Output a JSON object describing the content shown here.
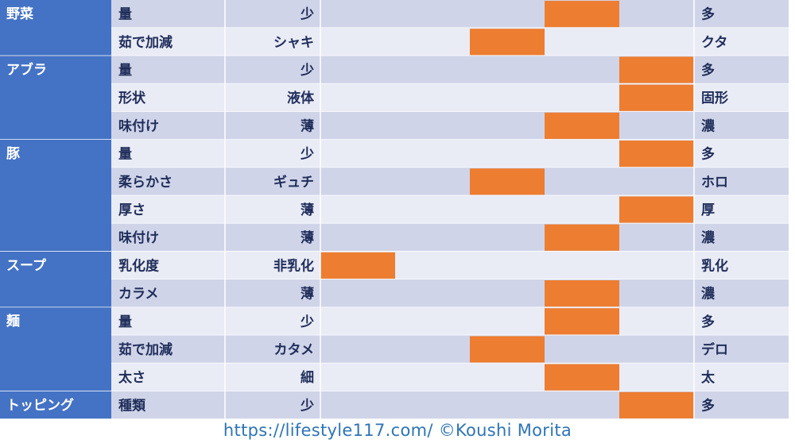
{
  "colors": {
    "category_bg": "#4472c4",
    "row_dark": "#cfd4e8",
    "row_light": "#e9ebf5",
    "marker": "#ed7d31",
    "text": "#1f2d5a",
    "grid": "#ffffff"
  },
  "chart_data": {
    "type": "table",
    "scale_steps": 5,
    "categories": [
      {
        "name": "野菜",
        "rows": [
          {
            "attr": "量",
            "low": "少",
            "high": "多",
            "level": 4
          },
          {
            "attr": "茹で加減",
            "low": "シャキ",
            "high": "クタ",
            "level": 3
          }
        ]
      },
      {
        "name": "アブラ",
        "rows": [
          {
            "attr": "量",
            "low": "少",
            "high": "多",
            "level": 5
          },
          {
            "attr": "形状",
            "low": "液体",
            "high": "固形",
            "level": 5
          },
          {
            "attr": "味付け",
            "low": "薄",
            "high": "濃",
            "level": 4
          }
        ]
      },
      {
        "name": "豚",
        "rows": [
          {
            "attr": "量",
            "low": "少",
            "high": "多",
            "level": 5
          },
          {
            "attr": "柔らかさ",
            "low": "ギュチ",
            "high": "ホロ",
            "level": 3
          },
          {
            "attr": "厚さ",
            "low": "薄",
            "high": "厚",
            "level": 5
          },
          {
            "attr": "味付け",
            "low": "薄",
            "high": "濃",
            "level": 4
          }
        ]
      },
      {
        "name": "スープ",
        "rows": [
          {
            "attr": "乳化度",
            "low": "非乳化",
            "high": "乳化",
            "level": 1
          },
          {
            "attr": "カラメ",
            "low": "薄",
            "high": "濃",
            "level": 4
          }
        ]
      },
      {
        "name": "麺",
        "rows": [
          {
            "attr": "量",
            "low": "少",
            "high": "多",
            "level": 4
          },
          {
            "attr": "茹で加減",
            "low": "カタメ",
            "high": "デロ",
            "level": 3
          },
          {
            "attr": "太さ",
            "low": "細",
            "high": "太",
            "level": 4
          }
        ]
      },
      {
        "name": "トッピング",
        "rows": [
          {
            "attr": "種類",
            "low": "少",
            "high": "多",
            "level": 5
          }
        ]
      }
    ]
  },
  "footer": {
    "text": "https://lifestyle117.com/  ©Koushi Morita"
  }
}
